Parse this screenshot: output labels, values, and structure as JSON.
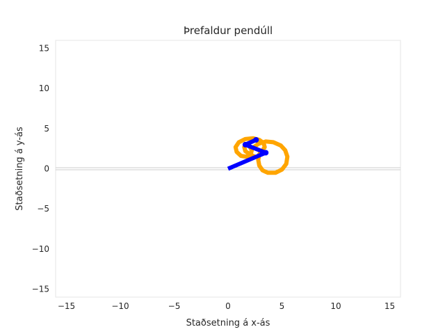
{
  "chart_data": {
    "type": "line",
    "title": "Þrefaldur pendúll",
    "xlabel": "Staðsetning á x-ás",
    "ylabel": "Staðsetning á y-ás",
    "xlim": [
      -16,
      16
    ],
    "ylim": [
      -16,
      16
    ],
    "xticks": [
      -15,
      -10,
      -5,
      0,
      5,
      10,
      15
    ],
    "yticks": [
      -15,
      -10,
      -5,
      0,
      5,
      10,
      15
    ],
    "xtick_labels": [
      "−15",
      "−10",
      "−5",
      "0",
      "5",
      "10",
      "15"
    ],
    "ytick_labels": [
      "−15",
      "−10",
      "−5",
      "0",
      "5",
      "10",
      "15"
    ],
    "grid": false,
    "colors": {
      "trace": "#FFA500",
      "pendulum": "#0000FF",
      "axis_line": "#cccccc",
      "spine": "#e6e6e6"
    },
    "series": [
      {
        "role": "trace",
        "x": [
          2.2,
          2.8,
          3.5,
          4.2,
          4.9,
          5.3,
          5.5,
          5.4,
          5.0,
          4.4,
          3.7,
          3.2,
          2.9,
          2.8,
          2.9,
          3.2,
          3.4,
          3.3,
          2.9,
          2.3,
          1.6,
          1.0,
          0.7,
          0.8,
          1.2,
          1.7,
          2.1,
          2.2,
          2.0,
          1.7,
          1.5,
          1.6,
          2.0,
          2.5
        ],
        "y": [
          2.5,
          3.1,
          3.4,
          3.3,
          2.9,
          2.3,
          1.5,
          0.6,
          -0.1,
          -0.5,
          -0.5,
          -0.2,
          0.4,
          1.1,
          1.8,
          2.3,
          2.7,
          3.2,
          3.6,
          3.8,
          3.7,
          3.3,
          2.7,
          2.1,
          1.6,
          1.5,
          1.8,
          2.3,
          2.8,
          3.0,
          2.7,
          2.2,
          1.8,
          1.5
        ]
      },
      {
        "role": "pendulum",
        "x": [
          0.0,
          3.5,
          1.6,
          2.6
        ],
        "y": [
          0.0,
          2.0,
          3.0,
          3.6
        ]
      }
    ]
  }
}
